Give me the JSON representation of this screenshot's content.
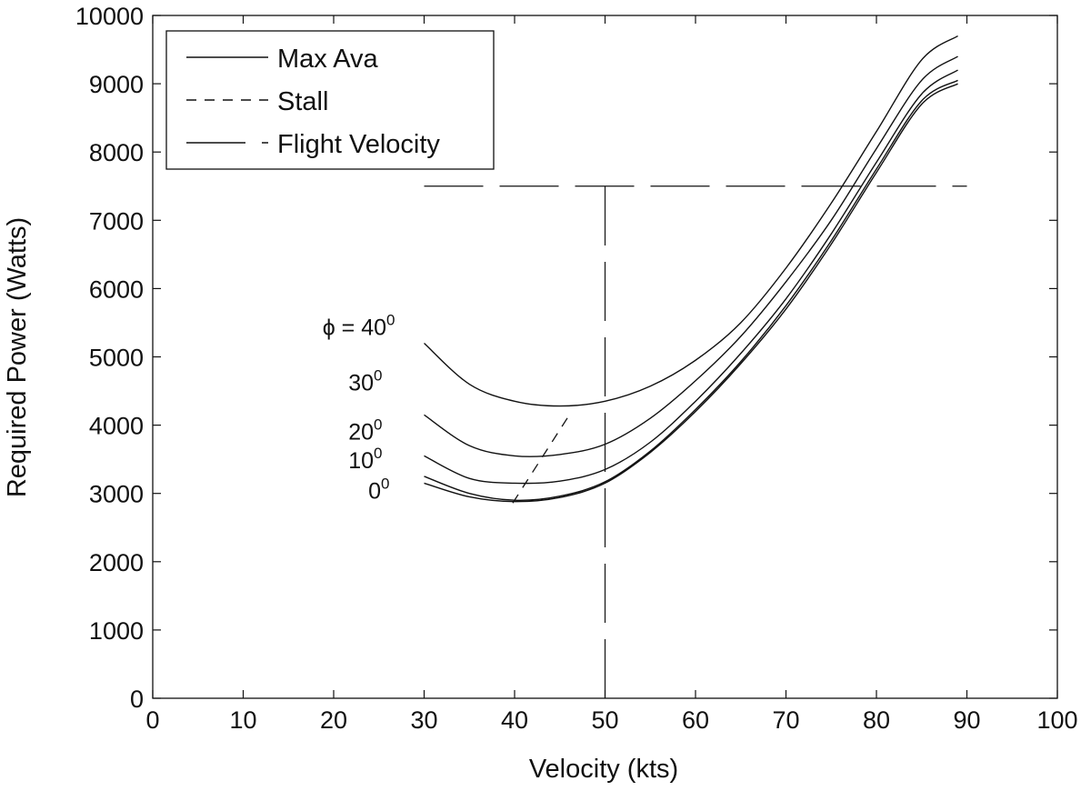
{
  "chart_data": {
    "type": "line",
    "title": "",
    "xlabel": "Velocity (kts)",
    "ylabel": "Required Power (Watts)",
    "xlim": [
      0,
      100
    ],
    "ylim": [
      0,
      10000
    ],
    "xticks": [
      0,
      10,
      20,
      30,
      40,
      50,
      60,
      70,
      80,
      90,
      100
    ],
    "yticks": [
      0,
      1000,
      2000,
      3000,
      4000,
      5000,
      6000,
      7000,
      8000,
      9000,
      10000
    ],
    "grid": false,
    "legend_position": "top-left",
    "legend": [
      {
        "label": "Max Ava",
        "style": "solid"
      },
      {
        "label": "Stall",
        "style": "dashed"
      },
      {
        "label": "Flight Velocity",
        "style": "dash-long"
      }
    ],
    "x": [
      30,
      35,
      40,
      45,
      50,
      55,
      60,
      65,
      70,
      75,
      80,
      85,
      89
    ],
    "series": [
      {
        "values": [
          3150,
          2950,
          2880,
          2940,
          3150,
          3600,
          4200,
          4900,
          5700,
          6650,
          7700,
          8700,
          9000
        ]
      },
      {
        "values": [
          3250,
          3000,
          2900,
          2960,
          3170,
          3620,
          4230,
          4930,
          5750,
          6700,
          7750,
          8750,
          9050
        ]
      },
      {
        "values": [
          3550,
          3220,
          3150,
          3180,
          3350,
          3750,
          4350,
          5050,
          5850,
          6800,
          7850,
          8850,
          9200
        ]
      },
      {
        "values": [
          4150,
          3700,
          3550,
          3570,
          3720,
          4100,
          4650,
          5300,
          6100,
          7000,
          8050,
          9050,
          9400
        ]
      },
      {
        "values": [
          5200,
          4600,
          4350,
          4280,
          4350,
          4570,
          4950,
          5500,
          6300,
          7250,
          8300,
          9350,
          9700
        ]
      }
    ],
    "stall_line": {
      "x": [
        39.8,
        46.3
      ],
      "y": [
        2860,
        4200
      ]
    },
    "max_available_power_line": {
      "x": [
        30,
        90
      ],
      "y": [
        7500,
        7500
      ]
    },
    "flight_velocity_line": {
      "x": [
        50,
        50
      ],
      "y": [
        0,
        7500
      ]
    },
    "curve_labels": [
      {
        "prefix": "ϕ = ",
        "base": "40",
        "sup": "0",
        "at_x": 30,
        "at_y": 5200
      },
      {
        "prefix": "",
        "base": "30",
        "sup": "0",
        "at_x": 30,
        "at_y": 4150
      },
      {
        "prefix": "",
        "base": "20",
        "sup": "0",
        "at_x": 30,
        "at_y": 3550
      },
      {
        "prefix": "",
        "base": "10",
        "sup": "0",
        "at_x": 30,
        "at_y": 3250
      },
      {
        "prefix": "",
        "base": "0",
        "sup": "0",
        "at_x": 30,
        "at_y": 3150
      }
    ]
  }
}
